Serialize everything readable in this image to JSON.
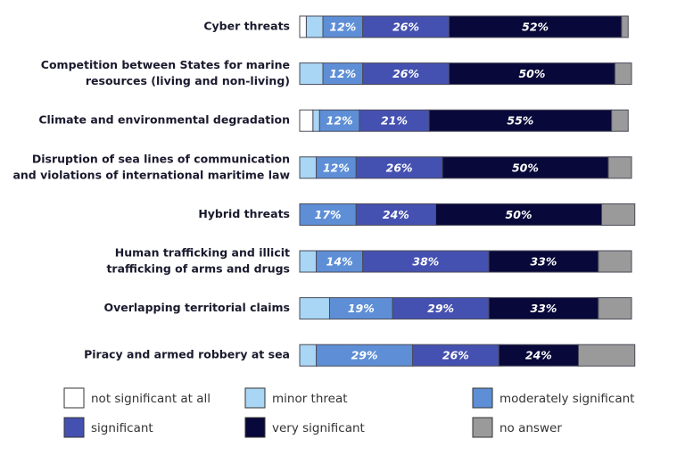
{
  "chart_data": {
    "type": "bar",
    "orientation": "horizontal",
    "stacked": true,
    "xlim": [
      0,
      100
    ],
    "categories": [
      [
        "Cyber threats"
      ],
      [
        "Competition between States for marine",
        "resources (living and non-living)"
      ],
      [
        "Climate and environmental degradation"
      ],
      [
        "Disruption of sea lines of communication",
        "and violations of international maritime law"
      ],
      [
        "Hybrid threats"
      ],
      [
        "Human trafficking and illicit",
        "trafficking of arms and drugs"
      ],
      [
        "Overlapping territorial claims"
      ],
      [
        "Piracy and armed robbery at sea"
      ]
    ],
    "series": [
      {
        "name": "not significant at all",
        "color": "#ffffff",
        "values": [
          2,
          0,
          4,
          0,
          0,
          0,
          0,
          0
        ]
      },
      {
        "name": "minor threat",
        "color": "#a8d6f4",
        "values": [
          5,
          7,
          2,
          5,
          0,
          5,
          9,
          5
        ]
      },
      {
        "name": "moderately significant",
        "color": "#5e8fd6",
        "values": [
          12,
          12,
          12,
          12,
          17,
          14,
          19,
          29
        ],
        "value_labels": [
          "12%",
          "12%",
          "12%",
          "12%",
          "17%",
          "14%",
          "19%",
          "29%"
        ]
      },
      {
        "name": "significant",
        "color": "#4551b0",
        "values": [
          26,
          26,
          21,
          26,
          24,
          38,
          29,
          26
        ],
        "value_labels": [
          "26%",
          "26%",
          "21%",
          "26%",
          "24%",
          "38%",
          "29%",
          "26%"
        ]
      },
      {
        "name": "very significant",
        "color": "#08083a",
        "values": [
          52,
          50,
          55,
          50,
          50,
          33,
          33,
          24
        ],
        "value_labels": [
          "52%",
          "50%",
          "55%",
          "50%",
          "50%",
          "33%",
          "33%",
          "24%"
        ]
      },
      {
        "name": "no answer",
        "color": "#9a9a9a",
        "values": [
          2,
          5,
          5,
          7,
          10,
          10,
          10,
          17
        ]
      }
    ]
  }
}
